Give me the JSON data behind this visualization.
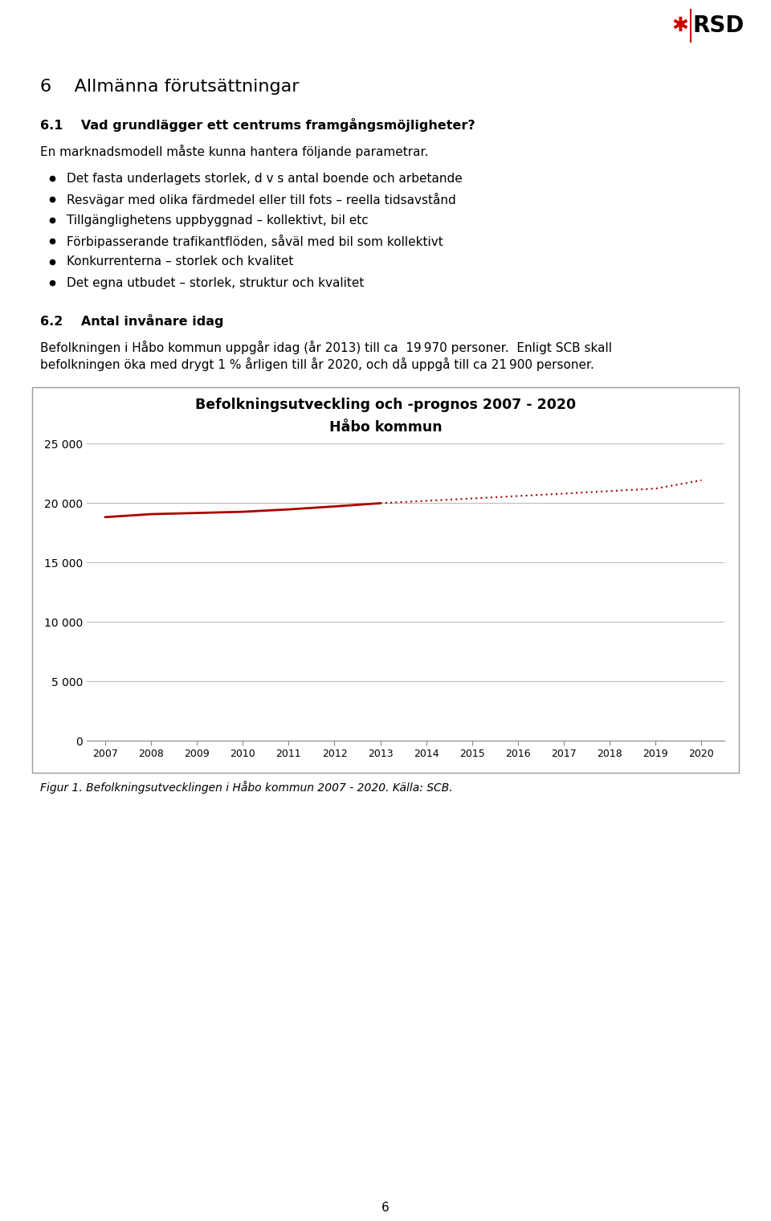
{
  "page_number": "6",
  "logo_star_color": "#cc0000",
  "logo_rsd_color": "#000000",
  "heading_text": "6    Allmänna förutsättningar",
  "section_title": "6.1    Vad grundlägger ett centrums framgångsmöjligheter?",
  "intro_text": "En marknadsmodell måste kunna hantera följande parametrar.",
  "bullet_points": [
    "Det fasta underlagets storlek, d v s antal boende och arbetande",
    "Resvägar med olika färdmedel eller till fots – reella tidsavstånd",
    "Tillgänglighetens uppbyggnad – kollektivt, bil etc",
    "Förbipasserande trafikantflöden, såväl med bil som kollektivt",
    "Konkurrenterna – storlek och kvalitet",
    "Det egna utbudet – storlek, struktur och kvalitet"
  ],
  "section2_title": "6.2    Antal invånare idag",
  "para2_line1": "Befolkningen i Håbo kommun uppgår idag (år 2013) till ca  19 970 personer.  Enligt SCB skall",
  "para2_line2": "befolkningen öka med drygt 1 % årligen till år 2020, och då uppgå till ca 21 900 personer.",
  "chart_title_line1": "Befolkningsutveckling och -prognos 2007 - 2020",
  "chart_title_line2": "Håbo kommun",
  "chart_years_actual": [
    2007,
    2008,
    2009,
    2010,
    2011,
    2012,
    2013
  ],
  "chart_values_actual": [
    18800,
    19050,
    19150,
    19250,
    19450,
    19700,
    19970
  ],
  "chart_years_forecast": [
    2013,
    2014,
    2015,
    2016,
    2017,
    2018,
    2019,
    2020
  ],
  "chart_values_forecast": [
    19970,
    20170,
    20370,
    20575,
    20780,
    20990,
    21200,
    21900
  ],
  "chart_ylim": [
    0,
    25000
  ],
  "chart_yticks": [
    0,
    5000,
    10000,
    15000,
    20000,
    25000
  ],
  "chart_ytick_labels": [
    "0",
    "5 000",
    "10 000",
    "15 000",
    "20 000",
    "25 000"
  ],
  "chart_xticks": [
    2007,
    2008,
    2009,
    2010,
    2011,
    2012,
    2013,
    2014,
    2015,
    2016,
    2017,
    2018,
    2019,
    2020
  ],
  "chart_line_color": "#aa0000",
  "figcaption": "Figur 1. Befolkningsutvecklingen i Håbo kommun 2007 - 2020. Källa: SCB.",
  "text_color": "#000000",
  "background_color": "#ffffff"
}
